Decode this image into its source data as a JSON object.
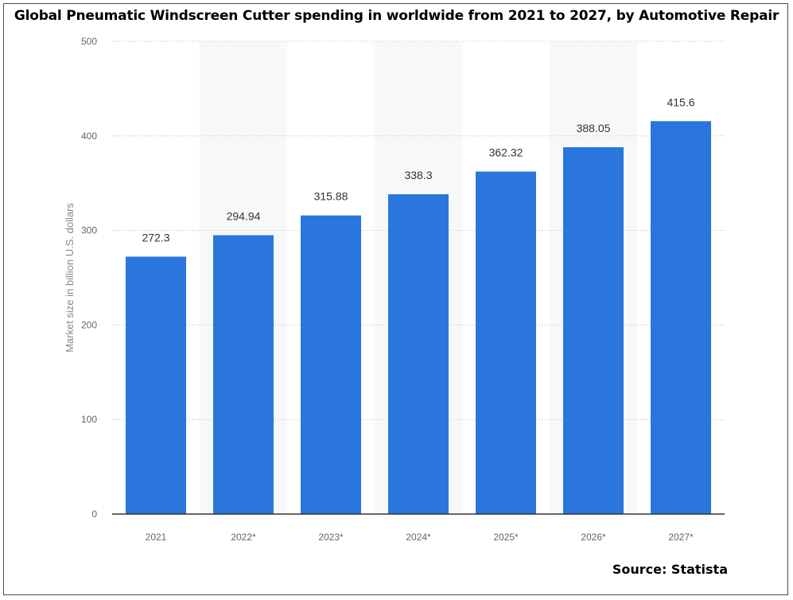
{
  "chart_data": {
    "type": "bar",
    "title": "Global Pneumatic Windscreen Cutter spending in worldwide from 2021 to 2027, by Automotive Repair",
    "xlabel": "",
    "ylabel": "Market size in billion U.S. dollars",
    "categories": [
      "2021",
      "2022*",
      "2023*",
      "2024*",
      "2025*",
      "2026*",
      "2027*"
    ],
    "values": [
      272.3,
      294.94,
      315.88,
      338.3,
      362.32,
      388.05,
      415.6
    ],
    "value_labels": [
      "272.3",
      "294.94",
      "315.88",
      "338.3",
      "362.32",
      "388.05",
      "415.6"
    ],
    "ylim": [
      0,
      500
    ],
    "yticks": [
      0,
      100,
      200,
      300,
      400,
      500
    ],
    "grid": true,
    "bar_color": "#2a76dd",
    "source": "Source: Statista"
  }
}
